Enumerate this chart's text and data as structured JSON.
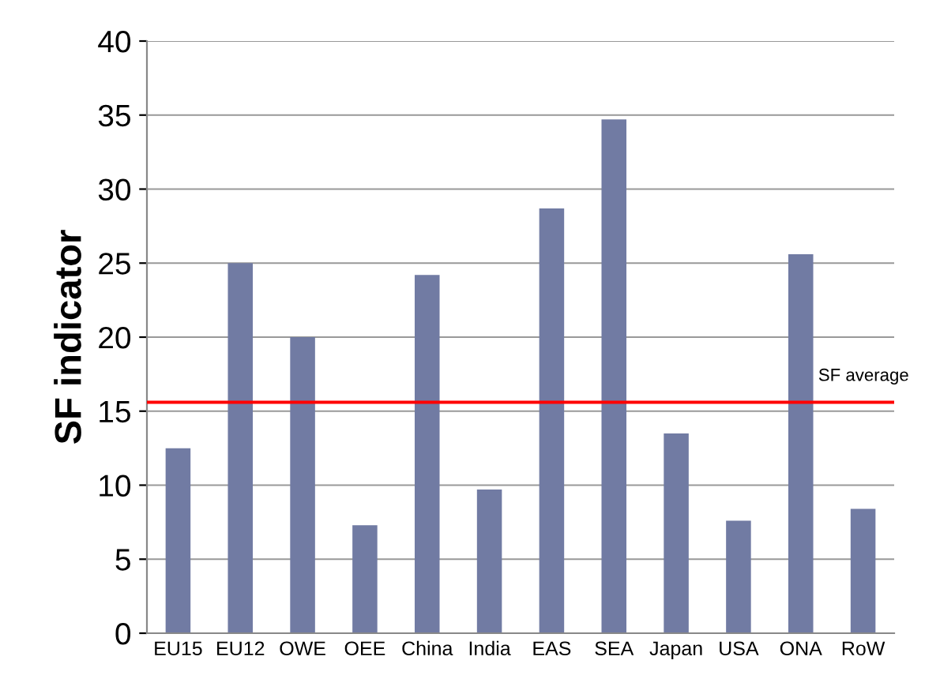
{
  "chart_data": {
    "type": "bar",
    "ylabel": "SF indicator",
    "categories": [
      "EU15",
      "EU12",
      "OWE",
      "OEE",
      "China",
      "India",
      "EAS",
      "SEA",
      "Japan",
      "USA",
      "ONA",
      "RoW"
    ],
    "values": [
      12.5,
      25.0,
      20.0,
      7.3,
      24.2,
      9.7,
      28.7,
      34.7,
      13.5,
      7.6,
      25.6,
      8.4
    ],
    "color": "#717ba3",
    "ylim": [
      0,
      40
    ],
    "yticks": [
      0,
      5,
      10,
      15,
      20,
      25,
      30,
      35,
      40
    ],
    "grid": "y",
    "ref_lines": [
      {
        "axis": "y",
        "value": 15.6,
        "label": "SF average",
        "color": "#ff0000",
        "line_style": "solid"
      }
    ]
  }
}
